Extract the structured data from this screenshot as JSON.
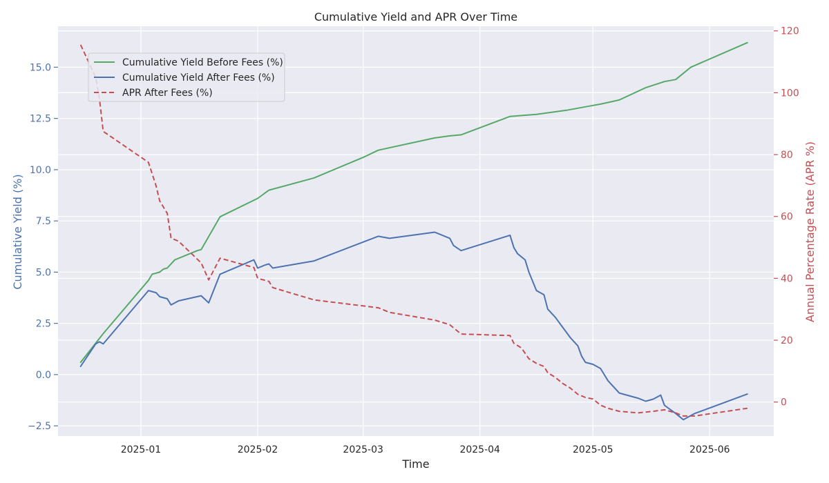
{
  "chart_data": {
    "type": "line",
    "title": "Cumulative Yield and APR Over Time",
    "xlabel": "Time",
    "ylabel_left": "Cumulative Yield (%)",
    "ylabel_right": "Annual Percentage Rate (APR %)",
    "xlim": [
      "2024-12-10",
      "2025-06-18"
    ],
    "ylim_left": [
      -3.0,
      17.0
    ],
    "ylim_right": [
      -11.0,
      121.5
    ],
    "x_ticks": [
      "2025-01-01",
      "2025-02-01",
      "2025-03-01",
      "2025-04-01",
      "2025-05-01",
      "2025-06-01"
    ],
    "x_tick_labels": [
      "2025-01",
      "2025-02",
      "2025-03",
      "2025-04",
      "2025-05",
      "2025-06"
    ],
    "y_left_ticks": [
      -2.5,
      0.0,
      2.5,
      5.0,
      7.5,
      10.0,
      12.5,
      15.0
    ],
    "y_left_tick_labels": [
      "−2.5",
      "0.0",
      "2.5",
      "5.0",
      "7.5",
      "10.0",
      "12.5",
      "15.0"
    ],
    "y_right_ticks": [
      0,
      20,
      40,
      60,
      80,
      100,
      120
    ],
    "y_right_tick_labels": [
      "0",
      "20",
      "40",
      "60",
      "80",
      "100",
      "120"
    ],
    "grid": true,
    "legend_position": "top-left",
    "colors": {
      "before_fees": "#55a868",
      "after_fees": "#4c72b0",
      "apr": "#c44e52",
      "left_axis": "#4c72b0",
      "right_axis": "#c44e52",
      "plot_bg": "#eaeaf2",
      "grid": "#ffffff"
    },
    "series": [
      {
        "name": "Cumulative Yield Before Fees (%)",
        "axis": "left",
        "style": "solid",
        "color": "#55a868",
        "points": [
          [
            "2024-12-16",
            0.6
          ],
          [
            "2024-12-22",
            2.0
          ],
          [
            "2025-01-03",
            4.6
          ],
          [
            "2025-01-04",
            4.9
          ],
          [
            "2025-01-06",
            5.0
          ],
          [
            "2025-01-07",
            5.15
          ],
          [
            "2025-01-08",
            5.2
          ],
          [
            "2025-01-10",
            5.6
          ],
          [
            "2025-01-16",
            6.05
          ],
          [
            "2025-01-17",
            6.1
          ],
          [
            "2025-01-22",
            7.7
          ],
          [
            "2025-02-01",
            8.6
          ],
          [
            "2025-02-04",
            9.0
          ],
          [
            "2025-02-16",
            9.6
          ],
          [
            "2025-03-01",
            10.6
          ],
          [
            "2025-03-05",
            10.95
          ],
          [
            "2025-03-20",
            11.55
          ],
          [
            "2025-03-24",
            11.65
          ],
          [
            "2025-03-27",
            11.7
          ],
          [
            "2025-04-09",
            12.6
          ],
          [
            "2025-04-16",
            12.7
          ],
          [
            "2025-04-24",
            12.9
          ],
          [
            "2025-04-30",
            13.1
          ],
          [
            "2025-05-03",
            13.2
          ],
          [
            "2025-05-08",
            13.4
          ],
          [
            "2025-05-15",
            14.0
          ],
          [
            "2025-05-20",
            14.3
          ],
          [
            "2025-05-23",
            14.4
          ],
          [
            "2025-05-27",
            15.0
          ],
          [
            "2025-06-11",
            16.2
          ]
        ]
      },
      {
        "name": "Cumulative Yield After Fees (%)",
        "axis": "left",
        "style": "solid",
        "color": "#4c72b0",
        "points": [
          [
            "2024-12-16",
            0.4
          ],
          [
            "2024-12-20",
            1.5
          ],
          [
            "2024-12-21",
            1.6
          ],
          [
            "2024-12-22",
            1.5
          ],
          [
            "2025-01-03",
            4.1
          ],
          [
            "2025-01-05",
            4.0
          ],
          [
            "2025-01-06",
            3.8
          ],
          [
            "2025-01-08",
            3.7
          ],
          [
            "2025-01-09",
            3.4
          ],
          [
            "2025-01-11",
            3.6
          ],
          [
            "2025-01-17",
            3.85
          ],
          [
            "2025-01-19",
            3.5
          ],
          [
            "2025-01-22",
            4.9
          ],
          [
            "2025-01-31",
            5.6
          ],
          [
            "2025-02-01",
            5.2
          ],
          [
            "2025-02-03",
            5.35
          ],
          [
            "2025-02-04",
            5.4
          ],
          [
            "2025-02-05",
            5.2
          ],
          [
            "2025-02-16",
            5.55
          ],
          [
            "2025-03-05",
            6.75
          ],
          [
            "2025-03-08",
            6.65
          ],
          [
            "2025-03-20",
            6.95
          ],
          [
            "2025-03-24",
            6.65
          ],
          [
            "2025-03-25",
            6.3
          ],
          [
            "2025-03-27",
            6.05
          ],
          [
            "2025-04-09",
            6.8
          ],
          [
            "2025-04-10",
            6.2
          ],
          [
            "2025-04-11",
            5.9
          ],
          [
            "2025-04-13",
            5.6
          ],
          [
            "2025-04-14",
            5.0
          ],
          [
            "2025-04-16",
            4.1
          ],
          [
            "2025-04-18",
            3.9
          ],
          [
            "2025-04-19",
            3.2
          ],
          [
            "2025-04-21",
            2.8
          ],
          [
            "2025-04-23",
            2.3
          ],
          [
            "2025-04-25",
            1.8
          ],
          [
            "2025-04-27",
            1.4
          ],
          [
            "2025-04-28",
            0.9
          ],
          [
            "2025-04-29",
            0.6
          ],
          [
            "2025-05-01",
            0.5
          ],
          [
            "2025-05-03",
            0.3
          ],
          [
            "2025-05-05",
            -0.3
          ],
          [
            "2025-05-07",
            -0.7
          ],
          [
            "2025-05-08",
            -0.9
          ],
          [
            "2025-05-13",
            -1.15
          ],
          [
            "2025-05-15",
            -1.3
          ],
          [
            "2025-05-17",
            -1.2
          ],
          [
            "2025-05-19",
            -1.0
          ],
          [
            "2025-05-20",
            -1.5
          ],
          [
            "2025-05-23",
            -1.9
          ],
          [
            "2025-05-25",
            -2.2
          ],
          [
            "2025-05-28",
            -1.9
          ],
          [
            "2025-06-11",
            -0.95
          ]
        ]
      },
      {
        "name": "APR After Fees (%)",
        "axis": "right",
        "style": "dashed",
        "color": "#c44e52",
        "points": [
          [
            "2024-12-16",
            115.5
          ],
          [
            "2024-12-20",
            105.0
          ],
          [
            "2024-12-21",
            98.0
          ],
          [
            "2024-12-22",
            87.5
          ],
          [
            "2025-01-03",
            77.5
          ],
          [
            "2025-01-05",
            70.0
          ],
          [
            "2025-01-06",
            65.0
          ],
          [
            "2025-01-08",
            61.0
          ],
          [
            "2025-01-09",
            53.0
          ],
          [
            "2025-01-11",
            52.0
          ],
          [
            "2025-01-17",
            45.0
          ],
          [
            "2025-01-19",
            39.5
          ],
          [
            "2025-01-22",
            46.5
          ],
          [
            "2025-01-31",
            43.5
          ],
          [
            "2025-02-01",
            40.0
          ],
          [
            "2025-02-04",
            39.0
          ],
          [
            "2025-02-05",
            37.0
          ],
          [
            "2025-02-16",
            33.0
          ],
          [
            "2025-03-05",
            30.5
          ],
          [
            "2025-03-08",
            29.0
          ],
          [
            "2025-03-20",
            26.5
          ],
          [
            "2025-03-24",
            25.0
          ],
          [
            "2025-03-25",
            24.0
          ],
          [
            "2025-03-27",
            22.0
          ],
          [
            "2025-04-09",
            21.5
          ],
          [
            "2025-04-10",
            19.0
          ],
          [
            "2025-04-12",
            17.5
          ],
          [
            "2025-04-14",
            14.0
          ],
          [
            "2025-04-16",
            12.5
          ],
          [
            "2025-04-18",
            11.5
          ],
          [
            "2025-04-19",
            9.5
          ],
          [
            "2025-04-21",
            8.0
          ],
          [
            "2025-04-23",
            6.0
          ],
          [
            "2025-04-25",
            4.5
          ],
          [
            "2025-04-27",
            2.5
          ],
          [
            "2025-04-29",
            1.5
          ],
          [
            "2025-05-01",
            1.0
          ],
          [
            "2025-05-03",
            -1.0
          ],
          [
            "2025-05-05",
            -2.0
          ],
          [
            "2025-05-08",
            -3.0
          ],
          [
            "2025-05-13",
            -3.5
          ],
          [
            "2025-05-17",
            -3.0
          ],
          [
            "2025-05-20",
            -2.5
          ],
          [
            "2025-05-23",
            -3.5
          ],
          [
            "2025-05-25",
            -4.5
          ],
          [
            "2025-05-28",
            -4.5
          ],
          [
            "2025-06-11",
            -2.0
          ]
        ]
      }
    ]
  }
}
